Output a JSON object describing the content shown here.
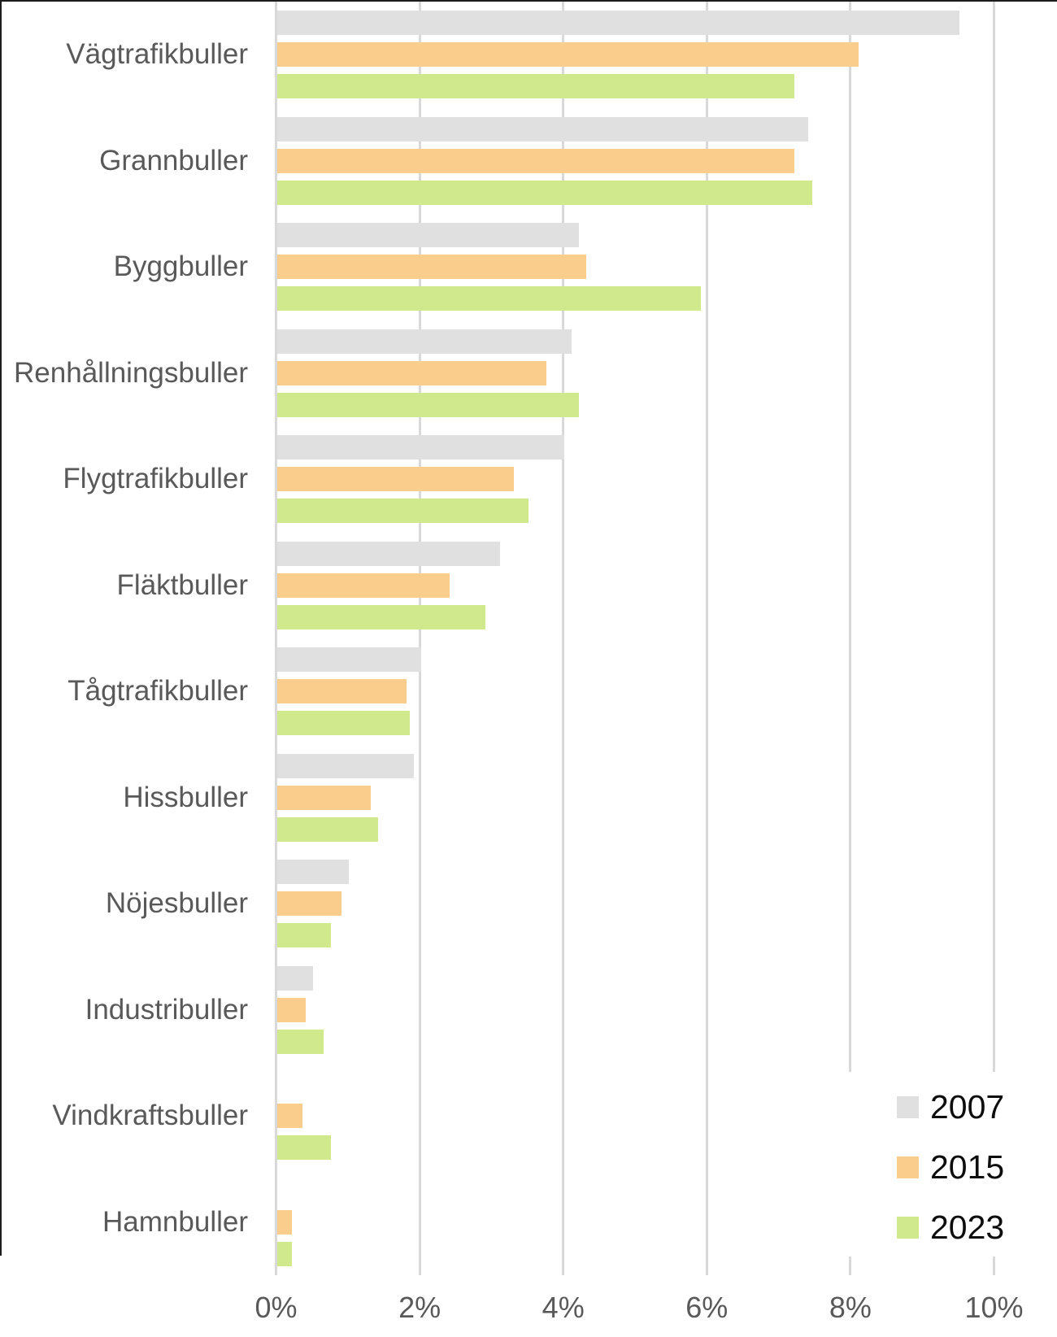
{
  "chart_data": {
    "type": "bar",
    "orientation": "horizontal",
    "categories": [
      "Vägtrafikbuller",
      "Grannbuller",
      "Byggbuller",
      "Renhållningsbuller",
      "Flygtrafikbuller",
      "Fläktbuller",
      "Tågtrafikbuller",
      "Hissbuller",
      "Nöjesbuller",
      "Industribuller",
      "Vindkraftsbuller",
      "Hamnbuller"
    ],
    "series": [
      {
        "name": "2007",
        "color": "#E0E0E0",
        "values": [
          9.5,
          7.4,
          4.2,
          4.1,
          4.0,
          3.1,
          2.0,
          1.9,
          1.0,
          0.5,
          null,
          null
        ]
      },
      {
        "name": "2015",
        "color": "#FBCD8C",
        "values": [
          8.1,
          7.2,
          4.3,
          3.75,
          3.3,
          2.4,
          1.8,
          1.3,
          0.9,
          0.4,
          0.35,
          0.2
        ]
      },
      {
        "name": "2023",
        "color": "#D0E98C",
        "values": [
          7.2,
          7.45,
          5.9,
          4.2,
          3.5,
          2.9,
          1.85,
          1.4,
          0.75,
          0.65,
          0.75,
          0.2
        ]
      }
    ],
    "x_axis": {
      "min": 0,
      "max": 10,
      "tick_step": 2,
      "tick_labels": [
        "0%",
        "2%",
        "4%",
        "6%",
        "8%",
        "10%"
      ],
      "unit": "%"
    },
    "grid": "vertical-gridlines-on",
    "legend_position": "bottom-right",
    "colors": {
      "gridline": "#D9D9D9",
      "axis_label_text": "#595959",
      "category_label_text": "#595959",
      "legend_text": "#0d0d0d",
      "background": "#FFFFFF"
    }
  }
}
